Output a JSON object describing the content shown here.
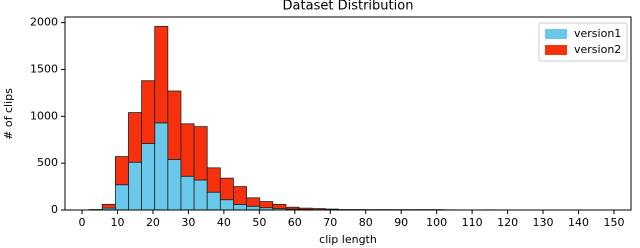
{
  "chart_data": {
    "type": "histogram",
    "title": "Dataset Distribution",
    "x_label": "clip length",
    "y_label": "# of clips",
    "stacked": true,
    "bins": [
      2,
      5.7,
      9.4,
      13.1,
      16.8,
      20.5,
      24.2,
      27.9,
      31.6,
      35.3,
      39,
      42.7,
      46.4,
      50.1,
      53.8,
      57.5,
      61.2,
      64.9,
      68.6,
      72.3,
      76,
      79.7,
      83.4,
      87.1,
      90.8,
      94.5,
      98.2,
      101.9,
      105.6,
      109.3,
      113,
      116.7,
      120.4,
      124.1,
      127.8,
      131.5,
      135.2,
      138.9,
      142.6,
      146.3,
      150
    ],
    "series": [
      {
        "name": "version1",
        "color": "#6ac8ea",
        "values": [
          2,
          20,
          270,
          510,
          710,
          930,
          540,
          360,
          320,
          190,
          110,
          60,
          40,
          25,
          15,
          10,
          5,
          3,
          2,
          1,
          1,
          1,
          1,
          1,
          1,
          1,
          1,
          0,
          0,
          0,
          0,
          0,
          0,
          0,
          0,
          0,
          0,
          0,
          0,
          0
        ]
      },
      {
        "name": "version2",
        "color": "#f7310e",
        "values": [
          3,
          40,
          300,
          530,
          670,
          1030,
          730,
          560,
          570,
          260,
          230,
          190,
          90,
          65,
          45,
          20,
          15,
          12,
          8,
          4,
          4,
          3,
          3,
          3,
          3,
          3,
          3,
          2,
          0,
          0,
          2,
          0,
          0,
          0,
          0,
          0,
          0,
          0,
          0,
          0
        ]
      }
    ],
    "xlim": [
      -4.8,
      154.8
    ],
    "ylim": [
      0,
      2060
    ],
    "xticks": [
      0,
      10,
      20,
      30,
      40,
      50,
      60,
      70,
      80,
      90,
      100,
      110,
      120,
      130,
      140,
      150
    ],
    "yticks": [
      0,
      500,
      1000,
      1500,
      2000
    ],
    "legend": "upper right"
  }
}
